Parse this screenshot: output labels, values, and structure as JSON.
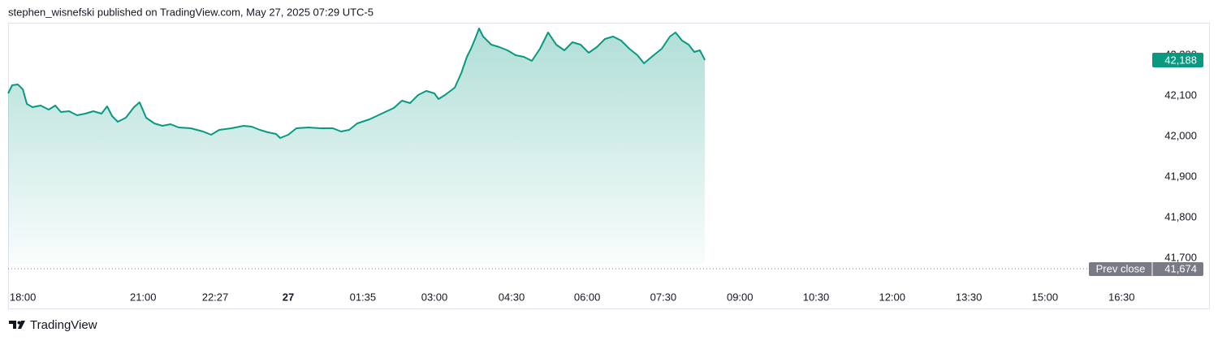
{
  "header": {
    "text": "stephen_wisnefski published on TradingView.com, May 27, 2025 07:29 UTC-5"
  },
  "footer": {
    "brand": "TradingView"
  },
  "chart_data": {
    "type": "area",
    "color": "#089981",
    "x": [
      0,
      0.08,
      0.19,
      0.29,
      0.37,
      0.48,
      0.64,
      0.8,
      0.93,
      1.04,
      1.2,
      1.36,
      1.52,
      1.68,
      1.84,
      1.95,
      2.05,
      2.16,
      2.32,
      2.48,
      2.59,
      2.72,
      2.88,
      3.04,
      3.2,
      3.36,
      3.6,
      3.84,
      4,
      4.16,
      4.4,
      4.64,
      4.8,
      4.96,
      5.12,
      5.28,
      5.36,
      5.52,
      5.68,
      5.92,
      6.16,
      6.4,
      6.56,
      6.72,
      6.88,
      7.12,
      7.36,
      7.6,
      7.76,
      7.92,
      8.08,
      8.24,
      8.4,
      8.48,
      8.61,
      8.8,
      8.93,
      9.04,
      9.12,
      9.2,
      9.28,
      9.36,
      9.52,
      9.68,
      9.84,
      10,
      10.16,
      10.32,
      10.48,
      10.64,
      10.8,
      10.96,
      11.12,
      11.28,
      11.44,
      11.6,
      11.76,
      11.92,
      12.08,
      12.24,
      12.4,
      12.53,
      12.72,
      12.88,
      13.04,
      13.15,
      13.28,
      13.41,
      13.52,
      13.63,
      13.73
    ],
    "values": [
      42106,
      42126,
      42128,
      42116,
      42080,
      42072,
      42076,
      42066,
      42076,
      42060,
      42062,
      42052,
      42056,
      42062,
      42056,
      42074,
      42050,
      42036,
      42046,
      42072,
      42084,
      42046,
      42032,
      42026,
      42030,
      42022,
      42020,
      42012,
      42004,
      42016,
      42020,
      42026,
      42024,
      42016,
      42010,
      42006,
      41996,
      42004,
      42020,
      42022,
      42020,
      42020,
      42012,
      42016,
      42032,
      42042,
      42056,
      42070,
      42088,
      42082,
      42102,
      42112,
      42106,
      42092,
      42102,
      42120,
      42156,
      42196,
      42216,
      42240,
      42266,
      42246,
      42226,
      42220,
      42212,
      42200,
      42196,
      42186,
      42216,
      42256,
      42226,
      42212,
      42232,
      42226,
      42206,
      42220,
      42240,
      42246,
      42236,
      42216,
      42200,
      42180,
      42200,
      42216,
      42246,
      42256,
      42236,
      42226,
      42208,
      42212,
      42188
    ],
    "xlim": [
      0,
      22.4
    ],
    "xticks": [
      {
        "value": 0.29,
        "label": "18:00"
      },
      {
        "value": 2.66,
        "label": "21:00"
      },
      {
        "value": 4.08,
        "label": "22:27"
      },
      {
        "value": 5.52,
        "label": "27"
      },
      {
        "value": 6.99,
        "label": "01:35"
      },
      {
        "value": 8.4,
        "label": "03:00"
      },
      {
        "value": 9.92,
        "label": "04:30"
      },
      {
        "value": 11.41,
        "label": "06:00"
      },
      {
        "value": 12.91,
        "label": "07:30"
      },
      {
        "value": 14.42,
        "label": "09:00"
      },
      {
        "value": 15.92,
        "label": "10:30"
      },
      {
        "value": 17.42,
        "label": "12:00"
      },
      {
        "value": 18.93,
        "label": "13:30"
      },
      {
        "value": 20.43,
        "label": "15:00"
      },
      {
        "value": 21.94,
        "label": "16:30"
      }
    ],
    "ylim": [
      41644,
      42276
    ],
    "yticks": [
      {
        "value": 42200,
        "label": "42,200"
      },
      {
        "value": 42100,
        "label": "42,100"
      },
      {
        "value": 42000,
        "label": "42,000"
      },
      {
        "value": 41900,
        "label": "41,900"
      },
      {
        "value": 41800,
        "label": "41,800"
      },
      {
        "value": 41700,
        "label": "41,700"
      }
    ],
    "last_price": {
      "value": 42188,
      "label": "42,188"
    },
    "prev_close": {
      "label": "Prev close",
      "value": 41674,
      "value_label": "41,674"
    }
  }
}
